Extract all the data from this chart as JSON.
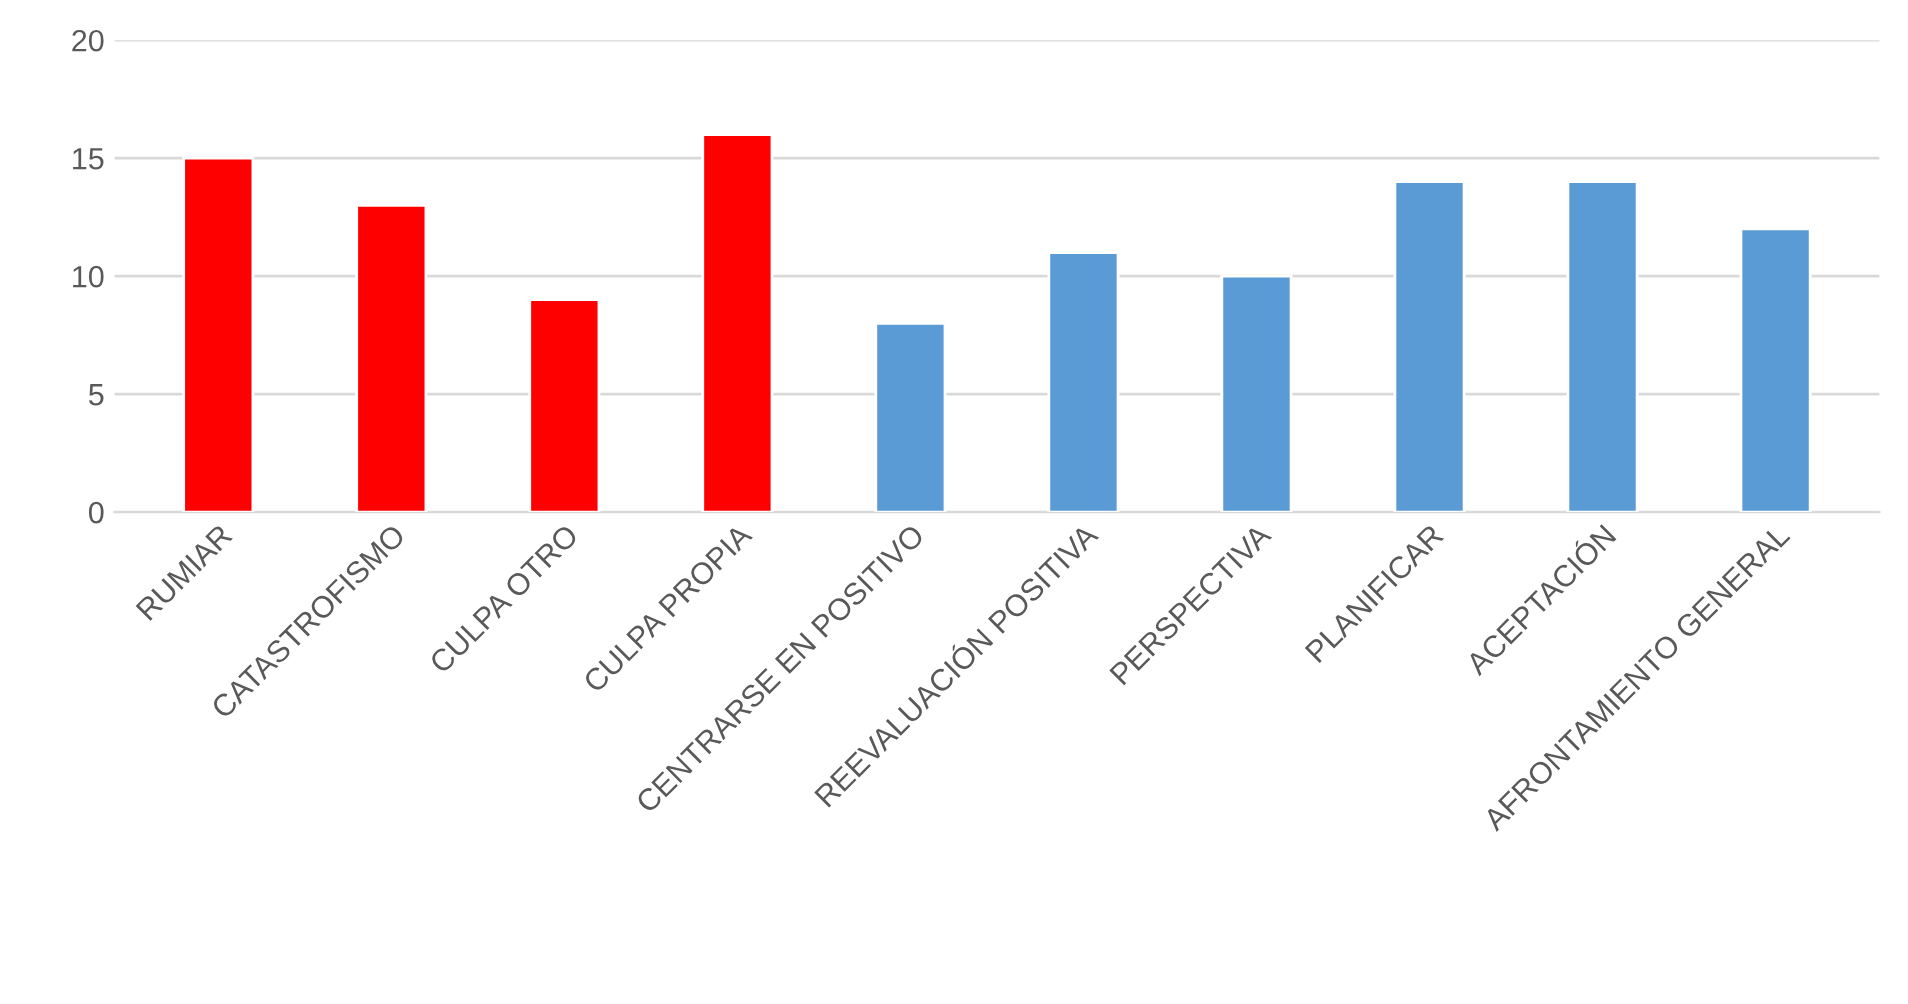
{
  "chart_data": {
    "type": "bar",
    "categories": [
      "RUMIAR",
      "CATASTROFISMO",
      "CULPA OTRO",
      "CULPA PROPIA",
      "CENTRARSE EN POSITIVO",
      "REEVALUACIÓN POSITIVA",
      "PERSPECTIVA",
      "PLANIFICAR",
      "ACEPTACIÓN",
      "AFRONTAMIENTO GENERAL"
    ],
    "values": [
      15,
      13,
      9,
      16,
      8,
      11,
      10,
      14,
      14,
      12
    ],
    "colors": [
      "#ff0000",
      "#ff0000",
      "#ff0000",
      "#ff0000",
      "#5b9bd5",
      "#5b9bd5",
      "#5b9bd5",
      "#5b9bd5",
      "#5b9bd5",
      "#5b9bd5"
    ],
    "ylim": [
      0,
      20
    ],
    "yticks": [
      0,
      5,
      10,
      15,
      20
    ],
    "grid": "y"
  }
}
